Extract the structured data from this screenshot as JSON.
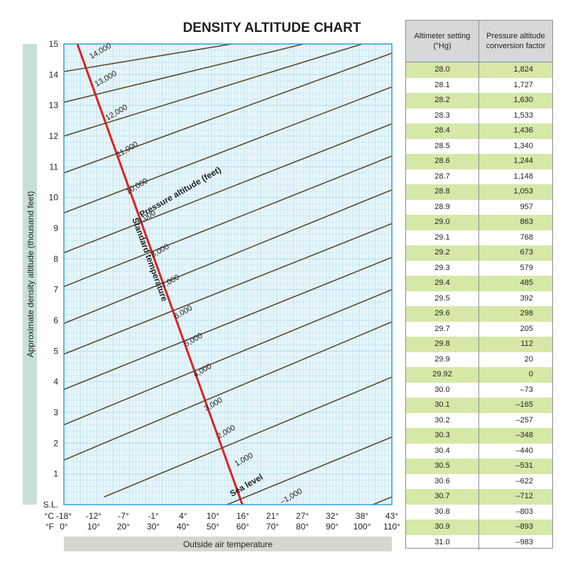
{
  "chart_data": [
    {
      "type": "line",
      "title": "DENSITY ALTITUDE CHART",
      "xlabel": "Outside air temperature",
      "ylabel": "Approximate density altitude (thousand feet)",
      "colors": {
        "background": "#e8f6fb",
        "grid": "#a9dcec",
        "border": "#2aa3d6",
        "pressure_lines": "#5e4a2c",
        "standard_line": "#e02020",
        "axis_bar": "#c8e0d4",
        "x_bar": "#d7d7d2"
      },
      "x_unit": "degrees C",
      "xlim": [
        -18,
        43
      ],
      "ylim": [
        0,
        15
      ],
      "grid": true,
      "x_ticks_c": [
        "-18°",
        "-12°",
        "-7°",
        "-1°",
        "4°",
        "10°",
        "16°",
        "21°",
        "27°",
        "32°",
        "38°",
        "43°"
      ],
      "x_ticks_f": [
        "0°",
        "10°",
        "20°",
        "30°",
        "40°",
        "50°",
        "60°",
        "70°",
        "80°",
        "90°",
        "100°",
        "110°"
      ],
      "x_tick_c_prefix": "°C",
      "x_tick_f_prefix": "°F",
      "y_ticks": [
        "S.L.",
        "1",
        "2",
        "3",
        "4",
        "5",
        "6",
        "7",
        "8",
        "9",
        "10",
        "11",
        "12",
        "13",
        "14",
        "15"
      ],
      "series": [
        {
          "name": "Standard temperature",
          "x": [
            15.2,
            -15.5
          ],
          "y": [
            0,
            15
          ]
        },
        {
          "name": "-1,000",
          "x": [
            12.5,
            43
          ],
          "y": [
            -1.91,
            0.25
          ]
        },
        {
          "name": "Sea level",
          "x": [
            1.2,
            43
          ],
          "y": [
            -0.8,
            2.2
          ]
        },
        {
          "name": "1,000",
          "x": [
            -10.5,
            43
          ],
          "y": [
            0.25,
            4.15
          ]
        },
        {
          "name": "2,000",
          "x": [
            -18,
            43
          ],
          "y": [
            1.45,
            5.95
          ]
        },
        {
          "name": "3,000",
          "x": [
            -18,
            43
          ],
          "y": [
            2.6,
            7.0
          ]
        },
        {
          "name": "4,000",
          "x": [
            -18,
            43
          ],
          "y": [
            3.75,
            8.05
          ]
        },
        {
          "name": "5,000",
          "x": [
            -18,
            43
          ],
          "y": [
            4.9,
            9.15
          ]
        },
        {
          "name": "6,000",
          "x": [
            -18,
            43
          ],
          "y": [
            5.9,
            10.25
          ]
        },
        {
          "name": "7,000",
          "x": [
            -18,
            43
          ],
          "y": [
            7.1,
            11.35
          ]
        },
        {
          "name": "8,000",
          "x": [
            -18,
            43
          ],
          "y": [
            8.2,
            12.4
          ]
        },
        {
          "name": "9,000",
          "x": [
            -18,
            43
          ],
          "y": [
            9.5,
            13.6
          ]
        },
        {
          "name": "10,000",
          "x": [
            -18,
            43
          ],
          "y": [
            10.8,
            14.7
          ]
        },
        {
          "name": "11,000",
          "x": [
            -18,
            37.5
          ],
          "y": [
            12.0,
            15
          ]
        },
        {
          "name": "12,000",
          "x": [
            -18,
            26.6
          ],
          "y": [
            13.1,
            15
          ]
        },
        {
          "name": "13,000",
          "x": [
            -18,
            13.3
          ],
          "y": [
            14.1,
            15
          ]
        }
      ],
      "annotations": [
        {
          "text": "14,000",
          "x": -11.0,
          "y": 14.7,
          "angle": -30
        },
        {
          "text": "13,000",
          "x": -10.0,
          "y": 13.8,
          "angle": -30
        },
        {
          "text": "12,000",
          "x": -8.0,
          "y": 12.7,
          "angle": -30
        },
        {
          "text": "11,000",
          "x": -6.0,
          "y": 11.5,
          "angle": -30
        },
        {
          "text": "10,000",
          "x": -4.2,
          "y": 10.3,
          "angle": -30
        },
        {
          "text": "9,000",
          "x": -2.4,
          "y": 9.3,
          "angle": -30
        },
        {
          "text": "8,000",
          "x": 0.1,
          "y": 8.2,
          "angle": -30
        },
        {
          "text": "7,000",
          "x": 2.0,
          "y": 7.2,
          "angle": -30
        },
        {
          "text": "6,000",
          "x": 4.4,
          "y": 6.2,
          "angle": -30
        },
        {
          "text": "5,000",
          "x": 6.3,
          "y": 5.3,
          "angle": -30
        },
        {
          "text": "4,000",
          "x": 8.0,
          "y": 4.3,
          "angle": -30
        },
        {
          "text": "3,000",
          "x": 10.0,
          "y": 3.2,
          "angle": -30
        },
        {
          "text": "2,000",
          "x": 12.4,
          "y": 2.3,
          "angle": -30
        },
        {
          "text": "1,000",
          "x": 15.7,
          "y": 1.4,
          "angle": -30
        },
        {
          "text": "–1,000",
          "x": 24.5,
          "y": 0.2,
          "angle": -30
        },
        {
          "text": "Sea level",
          "x": 16.2,
          "y": 0.55,
          "angle": -30,
          "bold": true
        },
        {
          "text": "Pressure altitude (feet)",
          "x": 3.9,
          "y": 10.1,
          "angle": -30,
          "bold": true
        },
        {
          "text": "Standard temperature",
          "x": -2.5,
          "y": 7.95,
          "angle": 70,
          "bold": true
        }
      ]
    },
    {
      "type": "table",
      "columns": [
        "Altimeter setting (\"Hg)",
        "Pressure altitude conversion factor"
      ],
      "rows": [
        [
          "28.0",
          "1,824"
        ],
        [
          "28.1",
          "1,727"
        ],
        [
          "28.2",
          "1,630"
        ],
        [
          "28.3",
          "1,533"
        ],
        [
          "28.4",
          "1,436"
        ],
        [
          "28.5",
          "1,340"
        ],
        [
          "28.6",
          "1,244"
        ],
        [
          "28.7",
          "1,148"
        ],
        [
          "28.8",
          "1,053"
        ],
        [
          "28.9",
          "957"
        ],
        [
          "29.0",
          "863"
        ],
        [
          "29.1",
          "768"
        ],
        [
          "29.2",
          "673"
        ],
        [
          "29.3",
          "579"
        ],
        [
          "29.4",
          "485"
        ],
        [
          "29.5",
          "392"
        ],
        [
          "29.6",
          "298"
        ],
        [
          "29.7",
          "205"
        ],
        [
          "29.8",
          "112"
        ],
        [
          "29.9",
          "20"
        ],
        [
          "29.92",
          "0"
        ],
        [
          "30.0",
          "–73"
        ],
        [
          "30.1",
          "–165"
        ],
        [
          "30.2",
          "–257"
        ],
        [
          "30.3",
          "–348"
        ],
        [
          "30.4",
          "–440"
        ],
        [
          "30.5",
          "–531"
        ],
        [
          "30.6",
          "–622"
        ],
        [
          "30.7",
          "–712"
        ],
        [
          "30.8",
          "–803"
        ],
        [
          "30.9",
          "–893"
        ],
        [
          "31.0",
          "–983"
        ]
      ],
      "shaded_rows_every_other": true
    }
  ],
  "table": {
    "header_left_line1": "Altimeter setting",
    "header_left_line2": "(\"Hg)",
    "header_right_line1": "Pressure altitude",
    "header_right_line2": "conversion factor"
  }
}
